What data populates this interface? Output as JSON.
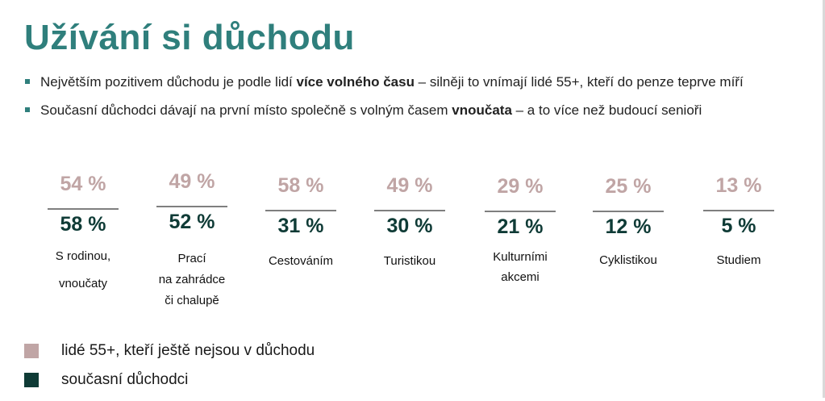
{
  "title": "Užívání si důchodu",
  "bullets": [
    {
      "pre": "Největším pozitivem důchodu je podle lidí ",
      "bold": "více volného času",
      "post": " – silněji to vnímají lidé 55+, kteří do penze teprve míří"
    },
    {
      "pre": "Současní důchodci dávají na první místo společně s volným časem ",
      "bold": "vnoučata",
      "post": " – a to více než budoucí senioři"
    }
  ],
  "stats": [
    {
      "top": "54 %",
      "bottom": "58 %",
      "label_lines": [
        "S rodinou,",
        "vnoučaty"
      ]
    },
    {
      "top": "49 %",
      "bottom": "52 %",
      "label_lines": [
        "Prací",
        "na zahrádce",
        "či chalupě"
      ]
    },
    {
      "top": "58 %",
      "bottom": "31 %",
      "label_lines": [
        "Cestováním"
      ]
    },
    {
      "top": "49 %",
      "bottom": "30 %",
      "label_lines": [
        "Turistikou"
      ]
    },
    {
      "top": "29 %",
      "bottom": "21 %",
      "label_lines": [
        "Kulturními",
        "akcemi"
      ]
    },
    {
      "top": "25 %",
      "bottom": "12 %",
      "label_lines": [
        "Cyklistikou"
      ]
    },
    {
      "top": "13 %",
      "bottom": "5 %",
      "label_lines": [
        "Studiem"
      ]
    }
  ],
  "legend": [
    {
      "label": "lidé 55+, kteří ještě nejsou v důchodu",
      "color": "#c0a5a5"
    },
    {
      "label": "současní důchodci",
      "color": "#0f3b36"
    }
  ]
}
